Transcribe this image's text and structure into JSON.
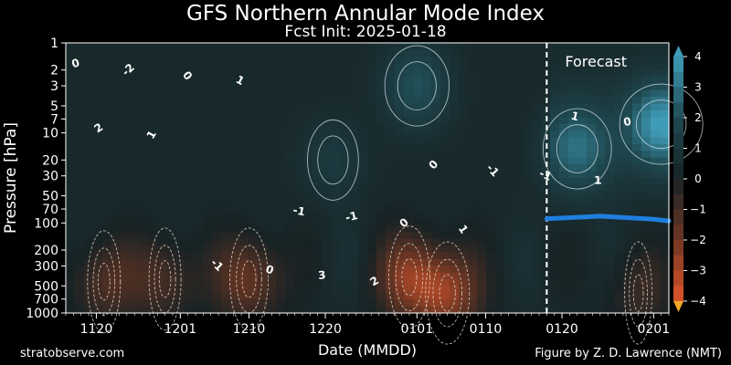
{
  "header": {
    "title": "GFS Northern Annular Mode Index",
    "subtitle": "Fcst Init: 2025-01-18"
  },
  "footer": {
    "left": "stratobserve.com",
    "right": "Figure by Z. D. Lawrence (NMT)"
  },
  "colors": {
    "neg_strong": "#e0552a",
    "neg_mid": "#6e3623",
    "neutral": "#172224",
    "pos_mid": "#1f4a52",
    "pos_strong": "#3f9bb6",
    "forecast_line": "#1f7fe0"
  },
  "chart_data": {
    "type": "heatmap",
    "title": "GFS Northern Annular Mode Index",
    "subtitle": "Fcst Init: 2025-01-18",
    "xlabel": "Date (MMDD)",
    "ylabel": "Pressure [hPa]",
    "x_ticks": [
      "1120",
      "1201",
      "1210",
      "1220",
      "0101",
      "0110",
      "0120",
      "0201"
    ],
    "x_range": [
      "2024-11-16",
      "2025-02-03"
    ],
    "y_scale": "log",
    "y_ticks": [
      1,
      2,
      3,
      5,
      7,
      10,
      20,
      30,
      50,
      70,
      100,
      200,
      300,
      500,
      700,
      1000
    ],
    "y_range": [
      1000,
      1
    ],
    "forecast_init": "2025-01-18",
    "forecast_label": "Forecast",
    "colorbar": {
      "min": -4,
      "max": 4,
      "ticks": [
        4,
        3,
        2,
        1,
        0,
        -1,
        -2,
        -3,
        -4
      ],
      "extend": "both"
    },
    "contour_labels": [
      "1",
      "2",
      "1",
      "1",
      "1",
      "2",
      "3",
      "-1",
      "0",
      "0",
      "0",
      "0",
      "-1",
      "-2",
      "-1",
      "1",
      "-1",
      "0",
      "0",
      "-1"
    ],
    "forecast_tropopause_line": [
      {
        "date": "2025-01-18",
        "hPa": 90
      },
      {
        "date": "2025-01-25",
        "hPa": 84
      },
      {
        "date": "2025-02-01",
        "hPa": 91
      },
      {
        "date": "2025-02-03",
        "hPa": 95
      }
    ],
    "neg_cores": [
      {
        "date": "2024-11-21",
        "hPa": 450,
        "value": -1.6
      },
      {
        "date": "2024-11-29",
        "hPa": 420,
        "value": -1.5
      },
      {
        "date": "2024-12-10",
        "hPa": 420,
        "value": -2.2
      },
      {
        "date": "2024-12-31",
        "hPa": 400,
        "value": -2.5
      },
      {
        "date": "2025-01-05",
        "hPa": 600,
        "value": -2.8
      },
      {
        "date": "2025-01-30",
        "hPa": 600,
        "value": -1.0
      }
    ],
    "pos_cores": [
      {
        "date": "2024-12-21",
        "hPa": 20,
        "value": 0.8
      },
      {
        "date": "2025-01-01",
        "hPa": 3,
        "value": 1.8
      },
      {
        "date": "2025-01-22",
        "hPa": 15,
        "value": 2.1
      },
      {
        "date": "2025-02-02",
        "hPa": 8,
        "value": 3.2
      }
    ]
  }
}
